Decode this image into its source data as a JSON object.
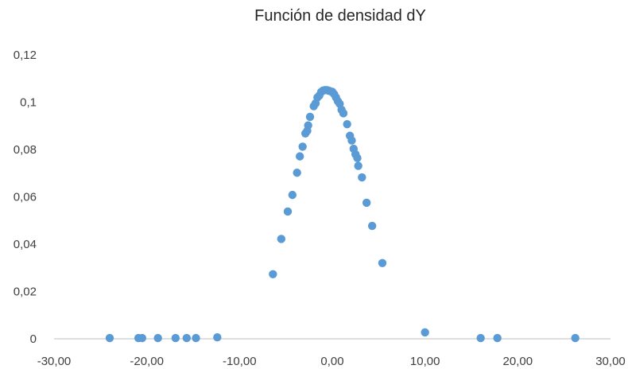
{
  "chart_data": {
    "type": "scatter",
    "title": "Función de densidad dY",
    "xlabel": "",
    "ylabel": "",
    "xlim": [
      -30,
      30
    ],
    "ylim": [
      0,
      0.12
    ],
    "x_ticks": [
      -30,
      -20,
      -10,
      0,
      10,
      20,
      30
    ],
    "x_tick_labels": [
      "-30,00",
      "-20,00",
      "-10,00",
      "0,00",
      "10,00",
      "20,00",
      "30,00"
    ],
    "y_ticks": [
      0,
      0.02,
      0.04,
      0.06,
      0.08,
      0.1,
      0.12
    ],
    "y_tick_labels": [
      "0",
      "0,02",
      "0,04",
      "0,06",
      "0,08",
      "0,1",
      "0,12"
    ],
    "grid": false,
    "legend": "none",
    "colors": {
      "series": "#5b9bd5",
      "axis": "#bfbfbf",
      "text": "#404040"
    },
    "series": [
      {
        "x": [
          -24.0,
          -20.9,
          -20.5,
          -18.8,
          -16.9,
          -15.7,
          -14.7,
          -12.4,
          -6.4,
          -5.5,
          -4.8,
          -4.3,
          -3.8,
          -3.5,
          -3.2,
          -2.9,
          -2.7,
          -2.6,
          -2.4,
          -2.0,
          -1.8,
          -1.6,
          -1.4,
          -1.2,
          -1.0,
          -0.8,
          -0.6,
          -0.4,
          -0.2,
          0.0,
          0.2,
          0.4,
          0.6,
          0.8,
          1.0,
          1.2,
          1.6,
          1.9,
          2.1,
          2.3,
          2.5,
          2.7,
          2.8,
          3.2,
          3.7,
          4.3,
          5.4,
          10.0,
          16.0,
          17.8,
          26.2
        ],
        "y": [
          0.0003,
          0.0003,
          0.0003,
          0.0003,
          0.0003,
          0.0003,
          0.0003,
          0.0006,
          0.0273,
          0.0422,
          0.0538,
          0.0608,
          0.0702,
          0.0771,
          0.0812,
          0.0868,
          0.0879,
          0.0902,
          0.0938,
          0.0983,
          0.0995,
          0.102,
          0.1028,
          0.1043,
          0.1049,
          0.1051,
          0.1051,
          0.1049,
          0.1046,
          0.1044,
          0.1034,
          0.102,
          0.1004,
          0.0993,
          0.0968,
          0.0953,
          0.0907,
          0.0858,
          0.0838,
          0.0803,
          0.078,
          0.0764,
          0.0731,
          0.0682,
          0.0575,
          0.0477,
          0.032,
          0.0027,
          0.0003,
          0.0003,
          0.0003
        ]
      }
    ]
  }
}
